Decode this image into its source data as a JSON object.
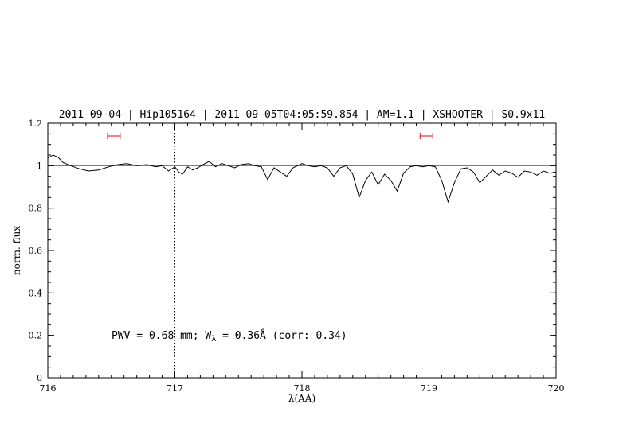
{
  "chart_data": {
    "type": "line",
    "title": "2011-09-04 | Hip105164 | 2011-09-05T04:05:59.854 | AM=1.1 | XSHOOTER | S0.9x11",
    "title_color": "#0000ee",
    "xlabel": "λ(AA)",
    "ylabel": "norm. flux",
    "xlim": [
      716,
      720
    ],
    "ylim": [
      0,
      1.2
    ],
    "xticks": [
      716,
      717,
      718,
      719,
      720
    ],
    "xtick_labels": [
      "716",
      "717",
      "718",
      "719",
      "720"
    ],
    "yticks": [
      0,
      0.2,
      0.4,
      0.6,
      0.8,
      1,
      1.2
    ],
    "ytick_labels": [
      "0",
      "0.2",
      "0.4",
      "0.6",
      "0.8",
      "1",
      "1.2"
    ],
    "grid": false,
    "legend": "none",
    "series": [
      {
        "name": "spectrum",
        "color": "#000000",
        "x": [
          716.0,
          716.04,
          716.08,
          716.12,
          716.18,
          716.25,
          716.32,
          716.4,
          716.48,
          716.55,
          716.62,
          716.7,
          716.78,
          716.85,
          716.9,
          716.95,
          717.0,
          717.03,
          717.06,
          717.1,
          717.14,
          717.18,
          717.22,
          717.27,
          717.32,
          717.37,
          717.42,
          717.47,
          717.52,
          717.58,
          717.63,
          717.68,
          717.73,
          717.78,
          717.83,
          717.88,
          717.93,
          718.0,
          718.05,
          718.1,
          718.15,
          718.2,
          718.25,
          718.3,
          718.35,
          718.4,
          718.45,
          718.5,
          718.55,
          718.6,
          718.65,
          718.7,
          718.75,
          718.8,
          718.85,
          718.9,
          718.95,
          719.0,
          719.05,
          719.1,
          719.15,
          719.2,
          719.25,
          719.3,
          719.35,
          719.4,
          719.45,
          719.5,
          719.55,
          719.6,
          719.65,
          719.7,
          719.75,
          719.8,
          719.85,
          719.9,
          719.95,
          720.0
        ],
        "y": [
          1.035,
          1.05,
          1.04,
          1.015,
          1.0,
          0.985,
          0.975,
          0.98,
          0.995,
          1.005,
          1.01,
          1.0,
          1.005,
          0.995,
          1.0,
          0.975,
          0.995,
          0.97,
          0.96,
          0.995,
          0.98,
          0.99,
          1.005,
          1.02,
          0.995,
          1.01,
          1.0,
          0.99,
          1.005,
          1.01,
          1.0,
          0.995,
          0.935,
          0.99,
          0.97,
          0.95,
          0.99,
          1.01,
          1.0,
          0.995,
          1.0,
          0.99,
          0.95,
          0.99,
          1.0,
          0.96,
          0.85,
          0.93,
          0.97,
          0.91,
          0.96,
          0.93,
          0.88,
          0.965,
          0.995,
          1.0,
          0.995,
          1.0,
          0.995,
          0.93,
          0.83,
          0.92,
          0.985,
          0.99,
          0.97,
          0.92,
          0.95,
          0.98,
          0.955,
          0.975,
          0.965,
          0.945,
          0.975,
          0.97,
          0.955,
          0.975,
          0.965,
          0.97
        ]
      },
      {
        "name": "continuum",
        "color": "#ee3333",
        "y_const": 1.0
      }
    ],
    "vlines": {
      "x": [
        717,
        719
      ],
      "style": "dotted",
      "color": "#000000"
    },
    "markers": [
      {
        "name": "bandpass",
        "x_center": 716.52,
        "half_width": 0.05,
        "y": 1.14,
        "color": "#ee3333"
      },
      {
        "name": "bandpass",
        "x_center": 718.98,
        "half_width": 0.05,
        "y": 1.14,
        "color": "#ee3333"
      }
    ],
    "annotation": {
      "prefix": "PWV = 0.68 mm; W",
      "sub": "λ",
      "suffix": " = 0.36Å (corr: 0.34)",
      "color": "#0000ee"
    }
  }
}
